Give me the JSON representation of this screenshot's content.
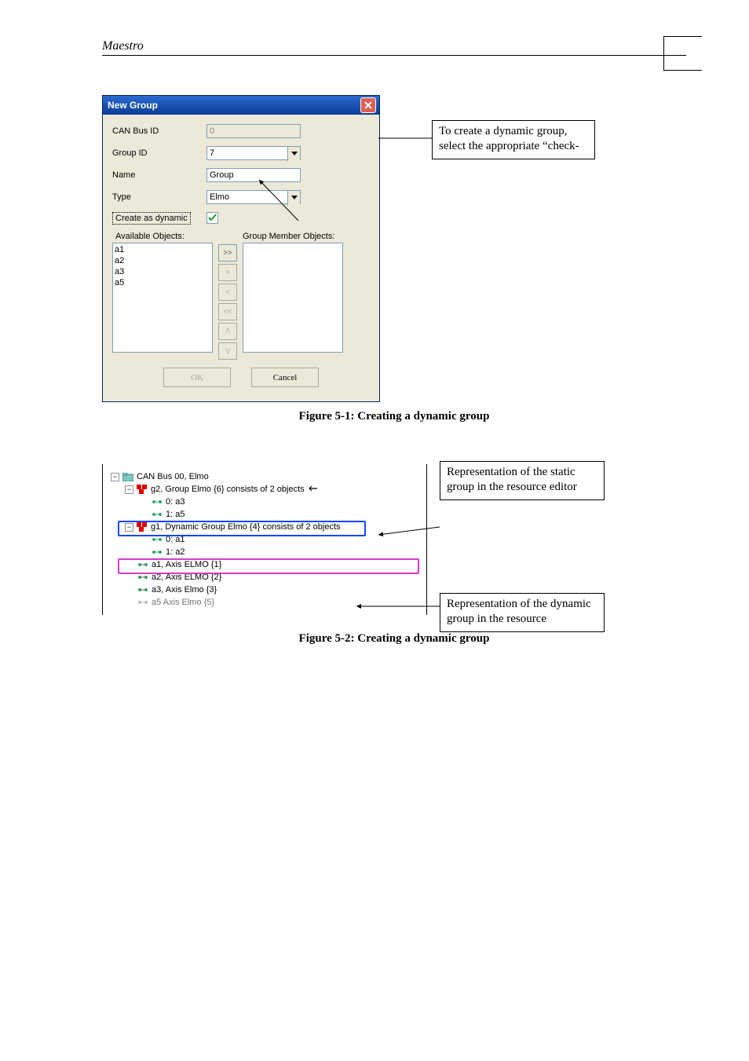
{
  "doc_header": {
    "title": "Maestro"
  },
  "dialog": {
    "title": "New Group",
    "labels": {
      "can_bus_id": "CAN Bus ID",
      "group_id": "Group ID",
      "name": "Name",
      "type": "Type",
      "create_dynamic": "Create as dynamic",
      "available_objects": "Available Objects:",
      "group_member_objects": "Group Member Objects:"
    },
    "values": {
      "can_bus_id": "0",
      "group_id": "7",
      "name": "Group",
      "type": "Elmo",
      "create_dynamic_checked": true
    },
    "buttons": {
      "ok": "OK",
      "cancel": "Cancel",
      "move_all_right": ">>",
      "move_right": ">",
      "move_left": "<",
      "move_all_left": "<<",
      "move_up": "/\\",
      "move_down": "\\/"
    },
    "available_list": [
      "a1",
      "a2",
      "a3",
      "a5"
    ],
    "member_list": []
  },
  "callout_top": "To create a dynamic group, select the appropriate “check-",
  "callout_mid": "Representation of the static group in the resource editor",
  "callout_bot": "Representation of the dynamic group in the resource",
  "caption_1": "Figure 5-1: Creating a dynamic group",
  "caption_2": "Figure 5-2: Creating a dynamic group",
  "tree": {
    "root": "CAN Bus 00, Elmo",
    "g2": "g2, Group Elmo {6} consists of 2 objects",
    "g2_children": [
      "0: a3",
      "1: a5"
    ],
    "g1": "g1, Dynamic Group Elmo {4} consists of 2 objects",
    "g1_children": [
      "0: a1",
      "1: a2"
    ],
    "axes": [
      "a1, Axis ELMO {1}",
      "a2, Axis ELMO {2}",
      "a3, Axis Elmo {3}",
      "a5  Axis Elmo {5}"
    ]
  },
  "colors": {
    "page_bg": "#ffffff",
    "dialog_bg": "#ece9d8",
    "title_grad_top": "#2a6ad0",
    "title_grad_bot": "#0a3d96",
    "input_border": "#7f9db9",
    "disabled_text": "#aca899",
    "highlight_blue": "#1447ff",
    "highlight_pink": "#d63dcd",
    "close_red": "#e16052"
  }
}
